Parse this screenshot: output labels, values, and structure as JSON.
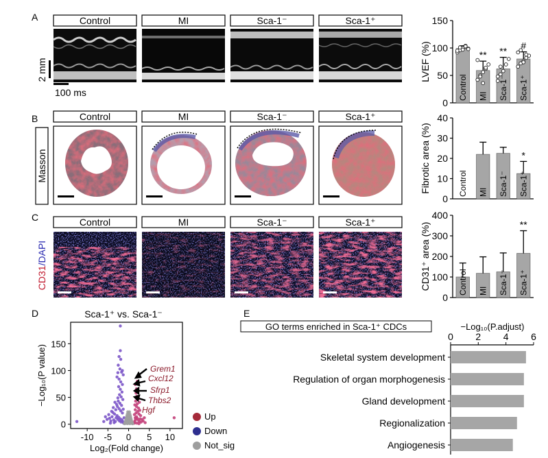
{
  "panels": {
    "a": {
      "letter": "A",
      "groups": [
        "Control",
        "MI",
        "Sca-1⁻",
        "Sca-1⁺"
      ],
      "scale_v": "2 mm",
      "scale_h": "100 ms"
    },
    "b": {
      "letter": "B",
      "groups": [
        "Control",
        "MI",
        "Sca-1⁻",
        "Sca-1⁺"
      ],
      "stain": "Masson"
    },
    "c": {
      "letter": "C",
      "groups": [
        "Control",
        "MI",
        "Sca-1⁻",
        "Sca-1⁺"
      ],
      "stain_a": "CD31",
      "stain_b": "/DAPI"
    },
    "d": {
      "letter": "D",
      "title": "Sca-1⁺ vs. Sca-1⁻",
      "genes": [
        "Grem1",
        "Cxcl12",
        "Sfrp1",
        "Thbs2",
        "Hgf"
      ],
      "legend": [
        "Up",
        "Down",
        "Not_sig"
      ]
    },
    "e": {
      "letter": "E",
      "title": "GO terms enriched in Sca-1⁺ CDCs"
    }
  },
  "colors": {
    "bar": "#a6a6a6",
    "up": "#a52a3a",
    "up_point": "#c3407a",
    "down": "#2e2f8f",
    "down_point": "#7b55c8",
    "not_sig": "#9e9e9e",
    "gene_label": "#8b1a2a",
    "masson_blue": "#5b5aa8",
    "masson_red": "#c0303a",
    "cd31_red": "#e0324a",
    "dapi_blue": "#3a3ad0"
  },
  "chart_data": [
    {
      "id": "lvef",
      "type": "bar",
      "categories": [
        "Control",
        "MI",
        "Sca-1⁻",
        "Sca-1⁺"
      ],
      "values": [
        99,
        59,
        62,
        80
      ],
      "errors": [
        5,
        17,
        21,
        13
      ],
      "annotations": [
        "",
        "**",
        "**",
        "#"
      ],
      "ylabel": "LVEF (%)",
      "ylim": [
        0,
        150
      ],
      "yticks": [
        0,
        50,
        100,
        150
      ]
    },
    {
      "id": "fibrotic",
      "type": "bar",
      "categories": [
        "Control",
        "MI",
        "Sca-1⁻",
        "Sca-1⁺"
      ],
      "values": [
        0,
        22,
        22.5,
        12.5
      ],
      "errors": [
        0,
        6,
        3,
        6
      ],
      "annotations": [
        "",
        "",
        "",
        "*"
      ],
      "ylabel": "Fibrotic area (%)",
      "ylim": [
        0,
        40
      ],
      "yticks": [
        0,
        10,
        20,
        30,
        40
      ]
    },
    {
      "id": "cd31",
      "type": "bar",
      "categories": [
        "Control",
        "MI",
        "Sca-1⁻",
        "Sca-1⁺"
      ],
      "values": [
        100,
        118,
        125,
        215
      ],
      "errors": [
        68,
        80,
        92,
        110
      ],
      "annotations": [
        "",
        "",
        "",
        "**"
      ],
      "ylabel": "CD31⁺ area (%)",
      "ylim": [
        0,
        400
      ],
      "yticks": [
        0,
        100,
        200,
        300,
        400
      ]
    },
    {
      "id": "volcano",
      "type": "scatter",
      "xlabel": "Log₂(Fold change)",
      "ylabel": "−Log₁₀(P value)",
      "xlim": [
        -14,
        13
      ],
      "ylim": [
        -8,
        190
      ],
      "xticks": [
        -10,
        -5,
        0,
        5,
        10
      ],
      "yticks": [
        0,
        50,
        100,
        150
      ],
      "series": [
        {
          "name": "Up",
          "points": [
            [
              1.3,
              3
            ],
            [
              1.5,
              6
            ],
            [
              1.7,
              9
            ],
            [
              1.6,
              12
            ],
            [
              1.9,
              14
            ],
            [
              2.1,
              11
            ],
            [
              2.3,
              8
            ],
            [
              2.6,
              5
            ],
            [
              2.8,
              10
            ],
            [
              3.0,
              4
            ],
            [
              1.4,
              18
            ],
            [
              1.8,
              21
            ],
            [
              2.2,
              24
            ],
            [
              2.5,
              19
            ],
            [
              2.9,
              16
            ],
            [
              3.3,
              9
            ],
            [
              1.6,
              27
            ],
            [
              1.9,
              33
            ],
            [
              2.4,
              30
            ],
            [
              2.7,
              26
            ],
            [
              2.1,
              38
            ],
            [
              1.7,
              43
            ],
            [
              2.3,
              47
            ],
            [
              2.0,
              52
            ],
            [
              2.6,
              41
            ],
            [
              1.8,
              58
            ],
            [
              2.2,
              62
            ],
            [
              1.5,
              36
            ],
            [
              3.5,
              6
            ],
            [
              4.0,
              3
            ],
            [
              11,
              12
            ],
            [
              1.4,
              2
            ],
            [
              2.0,
              2
            ],
            [
              2.5,
              1
            ],
            [
              3.8,
              12
            ],
            [
              1.9,
              66
            ],
            [
              1.6,
              74
            ],
            [
              2.1,
              80
            ]
          ]
        },
        {
          "name": "Down",
          "points": [
            [
              -1.2,
              2
            ],
            [
              -1.4,
              5
            ],
            [
              -1.6,
              8
            ],
            [
              -1.8,
              4
            ],
            [
              -2.0,
              10
            ],
            [
              -2.2,
              6
            ],
            [
              -2.4,
              13
            ],
            [
              -2.6,
              9
            ],
            [
              -2.8,
              16
            ],
            [
              -3.0,
              12
            ],
            [
              -3.2,
              5
            ],
            [
              -3.4,
              19
            ],
            [
              -3.6,
              8
            ],
            [
              -3.8,
              22
            ],
            [
              -4.0,
              14
            ],
            [
              -4.3,
              6
            ],
            [
              -4.6,
              11
            ],
            [
              -1.5,
              21
            ],
            [
              -1.9,
              25
            ],
            [
              -2.3,
              29
            ],
            [
              -2.7,
              33
            ],
            [
              -3.1,
              27
            ],
            [
              -1.7,
              35
            ],
            [
              -2.1,
              39
            ],
            [
              -2.5,
              43
            ],
            [
              -2.9,
              37
            ],
            [
              -1.4,
              46
            ],
            [
              -1.8,
              51
            ],
            [
              -2.2,
              55
            ],
            [
              -2.6,
              49
            ],
            [
              -1.6,
              60
            ],
            [
              -2.0,
              65
            ],
            [
              -2.4,
              70
            ],
            [
              -1.5,
              74
            ],
            [
              -1.9,
              79
            ],
            [
              -2.3,
              84
            ],
            [
              -2.8,
              88
            ],
            [
              -3.3,
              41
            ],
            [
              -3.7,
              31
            ],
            [
              -4.1,
              24
            ],
            [
              -4.8,
              18
            ],
            [
              -5.2,
              9
            ],
            [
              -5.6,
              14
            ],
            [
              -6.0,
              5
            ],
            [
              -1.3,
              92
            ],
            [
              -1.7,
              97
            ],
            [
              -2.1,
              103
            ],
            [
              -2.5,
              110
            ],
            [
              -1.9,
              121
            ],
            [
              -2.3,
              126
            ],
            [
              -2.0,
              137
            ],
            [
              -2.6,
              96
            ],
            [
              -1.5,
              100
            ],
            [
              -12.5,
              5
            ],
            [
              -2.0,
              183
            ],
            [
              -3.5,
              3
            ],
            [
              -4.4,
              2
            ],
            [
              -1.1,
              12
            ],
            [
              -1.3,
              28
            ]
          ]
        },
        {
          "name": "Not_sig",
          "points": [
            [
              -0.9,
              1
            ],
            [
              -0.6,
              2
            ],
            [
              -0.3,
              1
            ],
            [
              0,
              2
            ],
            [
              0.3,
              1
            ],
            [
              0.6,
              2
            ],
            [
              0.9,
              1
            ],
            [
              -0.8,
              4
            ],
            [
              -0.5,
              5
            ],
            [
              -0.2,
              3
            ],
            [
              0.2,
              4
            ],
            [
              0.5,
              5
            ],
            [
              0.8,
              4
            ],
            [
              -0.7,
              7
            ],
            [
              -0.4,
              8
            ],
            [
              -0.1,
              6
            ],
            [
              0.1,
              7
            ],
            [
              0.4,
              8
            ],
            [
              0.7,
              7
            ],
            [
              -0.6,
              10
            ],
            [
              -0.3,
              11
            ],
            [
              0,
              9
            ],
            [
              0.3,
              11
            ],
            [
              0.6,
              10
            ],
            [
              -0.5,
              13
            ],
            [
              -0.2,
              14
            ],
            [
              0.2,
              14
            ],
            [
              0.5,
              13
            ],
            [
              -0.4,
              16
            ],
            [
              0,
              17
            ],
            [
              0.4,
              16
            ],
            [
              -0.3,
              19
            ],
            [
              0.3,
              19
            ],
            [
              0,
              21
            ],
            [
              -0.9,
              3
            ],
            [
              0.9,
              3
            ],
            [
              -0.2,
              23
            ],
            [
              0.2,
              23
            ],
            [
              1.0,
              1
            ],
            [
              -1.0,
              1
            ]
          ]
        }
      ]
    },
    {
      "id": "go_terms",
      "type": "bar",
      "orientation": "horizontal",
      "categories": [
        "Skeletal system development",
        "Regulation of organ morphogenesis",
        "Gland development",
        "Regionalization",
        "Angiogenesis"
      ],
      "values": [
        5.45,
        5.3,
        5.3,
        4.8,
        4.5
      ],
      "xlabel": "−Log₁₀(P.adjust)",
      "xlim": [
        0,
        6
      ],
      "xticks": [
        0,
        2,
        4,
        6
      ]
    }
  ]
}
